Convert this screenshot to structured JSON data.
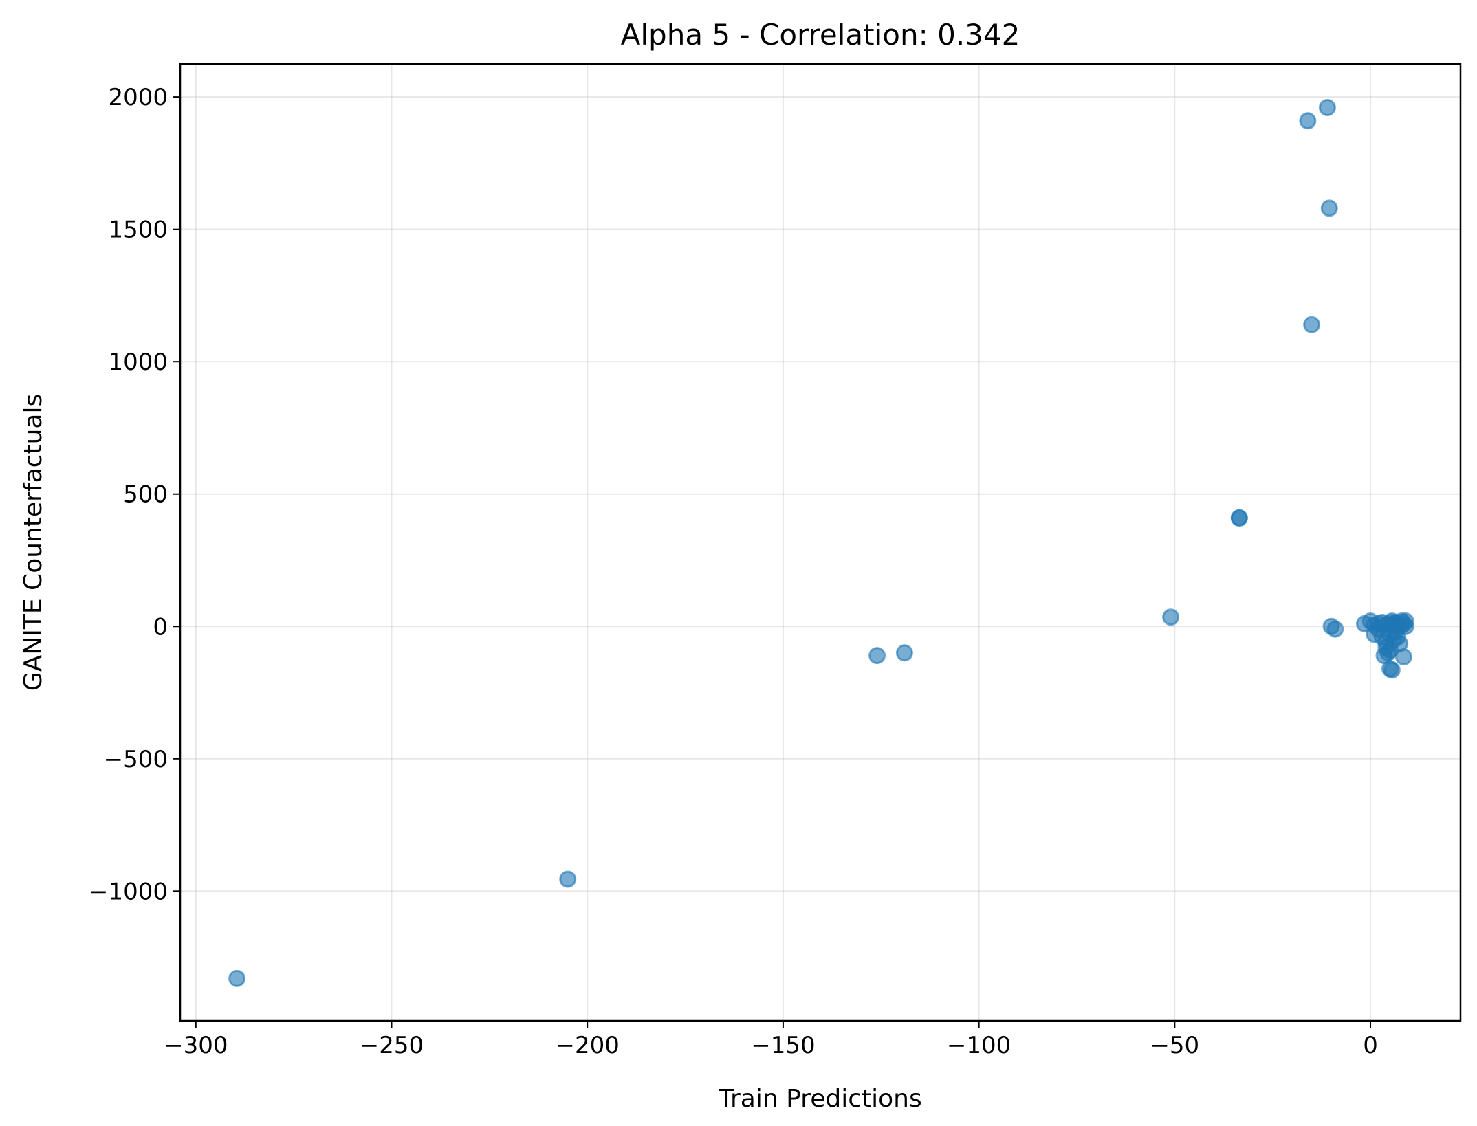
{
  "chart_data": {
    "type": "scatter",
    "title": "Alpha 5 - Correlation: 0.342",
    "xlabel": "Train Predictions",
    "ylabel": "GANITE Counterfactuals",
    "xlim": [
      -304,
      23
    ],
    "ylim": [
      -1490,
      2125
    ],
    "xticks": [
      -300,
      -250,
      -200,
      -150,
      -100,
      -50,
      0
    ],
    "xtick_labels": [
      "−300",
      "−250",
      "−200",
      "−150",
      "−100",
      "−50",
      "0"
    ],
    "yticks": [
      -1000,
      -500,
      0,
      500,
      1000,
      1500,
      2000
    ],
    "ytick_labels": [
      "−1000",
      "−500",
      "0",
      "500",
      "1000",
      "1500",
      "2000"
    ],
    "grid": true,
    "point_color": "#1f77b4",
    "series": [
      {
        "x": [
          -289.5,
          -205,
          -126,
          -119,
          -51,
          -33.5,
          -33.5,
          -16,
          -11,
          -10.5,
          -15,
          -10,
          -9,
          -1.5,
          0,
          1,
          1,
          2,
          2,
          3,
          3,
          3.5,
          4,
          4,
          4,
          4.5,
          4.5,
          5,
          5,
          5,
          5.5,
          5.5,
          6,
          6,
          6,
          6.5,
          6.5,
          7,
          7,
          7.5,
          8,
          8,
          8.5,
          8.5,
          9,
          9
        ],
        "y": [
          -1330,
          -955,
          -110,
          -100,
          35,
          410,
          410,
          1910,
          1960,
          1580,
          1140,
          0,
          -10,
          10,
          20,
          -30,
          5,
          10,
          -10,
          15,
          -40,
          -110,
          5,
          -60,
          -80,
          10,
          -100,
          -90,
          -160,
          -30,
          20,
          -165,
          5,
          -50,
          10,
          -20,
          15,
          0,
          -40,
          -65,
          5,
          20,
          -115,
          10,
          0,
          20
        ]
      }
    ]
  }
}
